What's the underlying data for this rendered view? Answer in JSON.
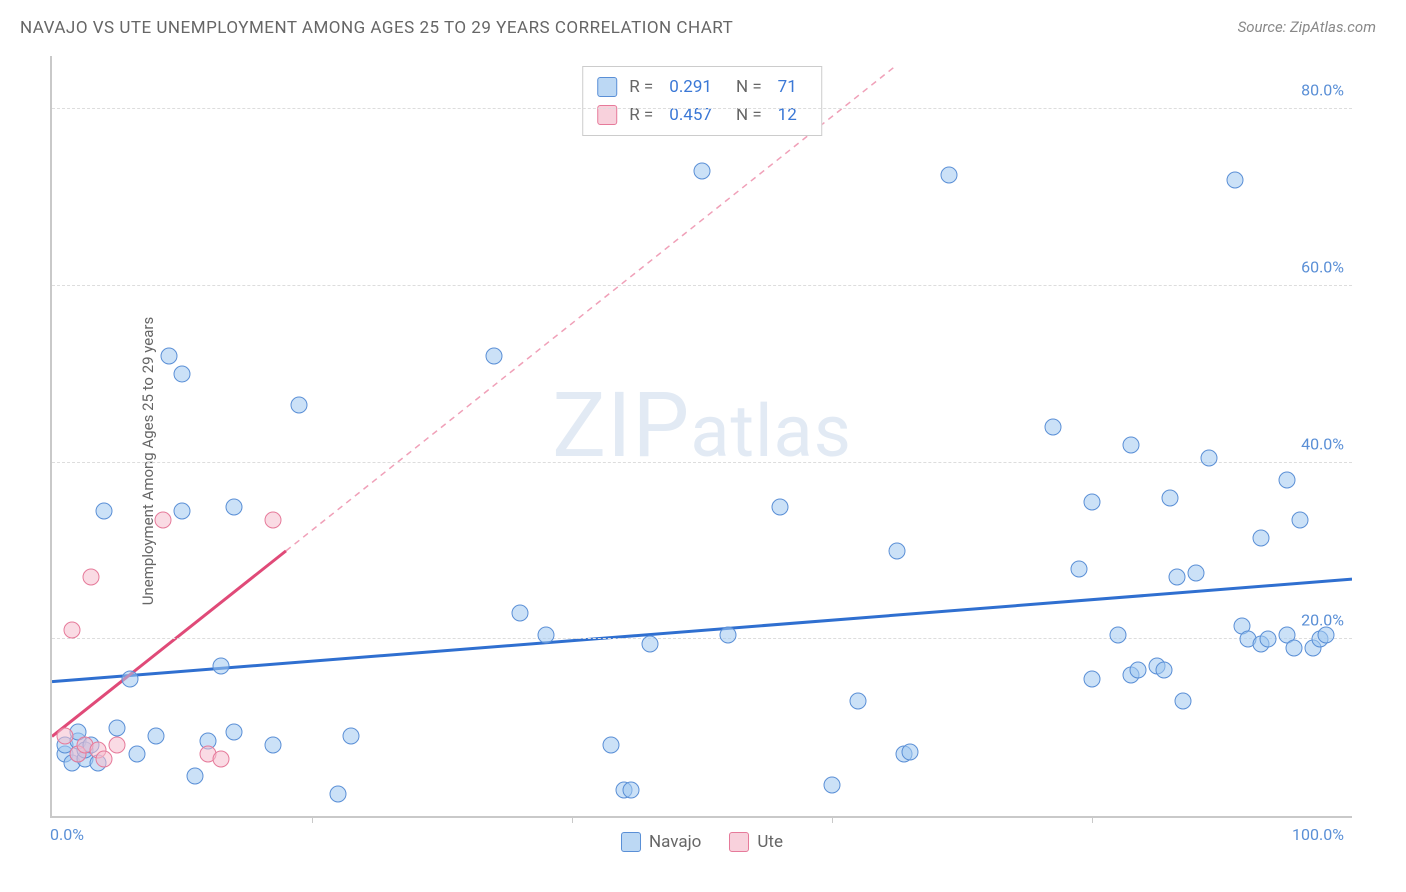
{
  "title": "NAVAJO VS UTE UNEMPLOYMENT AMONG AGES 25 TO 29 YEARS CORRELATION CHART",
  "source": "Source: ZipAtlas.com",
  "ylabel": "Unemployment Among Ages 25 to 29 years",
  "watermark_big": "ZIP",
  "watermark_small": "atlas",
  "chart": {
    "type": "scatter",
    "xlim": [
      0,
      100
    ],
    "ylim": [
      0,
      86
    ],
    "x_ticks_minor": [
      20,
      40,
      60,
      80
    ],
    "x_tick_labels": [
      {
        "v": 0,
        "label": "0.0%"
      },
      {
        "v": 100,
        "label": "100.0%"
      }
    ],
    "y_gridlines": [
      20,
      40,
      60,
      80
    ],
    "y_tick_labels": [
      {
        "v": 20,
        "label": "20.0%"
      },
      {
        "v": 40,
        "label": "40.0%"
      },
      {
        "v": 60,
        "label": "60.0%"
      },
      {
        "v": 80,
        "label": "80.0%"
      }
    ],
    "background_color": "#ffffff",
    "grid_color": "#dddddd",
    "axis_color": "#c9c9c9",
    "series": {
      "navajo": {
        "label": "Navajo",
        "R": "0.291",
        "N": "71",
        "fill": "rgba(160,200,240,0.55)",
        "stroke": "#5a8fd6",
        "marker_size": 17,
        "trend": {
          "x1": 0,
          "y1": 15.2,
          "x2": 100,
          "y2": 26.8,
          "color": "#2f6fd0",
          "width": 3,
          "dash": "none"
        },
        "points": [
          [
            1,
            7
          ],
          [
            1,
            8
          ],
          [
            1.5,
            6
          ],
          [
            2,
            7
          ],
          [
            2,
            8.5
          ],
          [
            2,
            9.5
          ],
          [
            2.5,
            6.5
          ],
          [
            2.5,
            7.5
          ],
          [
            3,
            8
          ],
          [
            3.5,
            6
          ],
          [
            4,
            34.5
          ],
          [
            5,
            10
          ],
          [
            6,
            15.5
          ],
          [
            6.5,
            7
          ],
          [
            8,
            9
          ],
          [
            9,
            52
          ],
          [
            10,
            50
          ],
          [
            10,
            34.5
          ],
          [
            11,
            4.5
          ],
          [
            12,
            8.5
          ],
          [
            13,
            17
          ],
          [
            14,
            35
          ],
          [
            14,
            9.5
          ],
          [
            17,
            8
          ],
          [
            19,
            46.5
          ],
          [
            22,
            2.5
          ],
          [
            23,
            9
          ],
          [
            34,
            52
          ],
          [
            36,
            23
          ],
          [
            38,
            20.5
          ],
          [
            43,
            8
          ],
          [
            44,
            3
          ],
          [
            44.5,
            3
          ],
          [
            46,
            19.5
          ],
          [
            50,
            73
          ],
          [
            52,
            20.5
          ],
          [
            56,
            35
          ],
          [
            60,
            3.5
          ],
          [
            62,
            13
          ],
          [
            65,
            30
          ],
          [
            65.5,
            7
          ],
          [
            66,
            7.3
          ],
          [
            69,
            72.5
          ],
          [
            77,
            44
          ],
          [
            79,
            28
          ],
          [
            80,
            15.5
          ],
          [
            80,
            35.5
          ],
          [
            82,
            20.5
          ],
          [
            83,
            42
          ],
          [
            83,
            16
          ],
          [
            83.5,
            16.5
          ],
          [
            85,
            17
          ],
          [
            85.5,
            16.5
          ],
          [
            86,
            36
          ],
          [
            86.5,
            27
          ],
          [
            87,
            13
          ],
          [
            88,
            27.5
          ],
          [
            89,
            40.5
          ],
          [
            91,
            72
          ],
          [
            91.5,
            21.5
          ],
          [
            92,
            20
          ],
          [
            93,
            31.5
          ],
          [
            93,
            19.5
          ],
          [
            93.5,
            20
          ],
          [
            95,
            38
          ],
          [
            95,
            20.5
          ],
          [
            95.5,
            19
          ],
          [
            96,
            33.5
          ],
          [
            97,
            19
          ],
          [
            97.5,
            20
          ],
          [
            98,
            20.5
          ]
        ]
      },
      "ute": {
        "label": "Ute",
        "R": "0.457",
        "N": "12",
        "fill": "rgba(245,190,205,0.55)",
        "stroke": "#e67a9a",
        "marker_size": 17,
        "trend_solid": {
          "x1": 0,
          "y1": 9,
          "x2": 18,
          "y2": 30,
          "color": "#e04a78",
          "width": 3
        },
        "trend_dash": {
          "x1": 18,
          "y1": 30,
          "x2": 65,
          "y2": 85,
          "color": "#f0a0b8",
          "width": 1.5,
          "dash": "6 5"
        },
        "points": [
          [
            1,
            9
          ],
          [
            1.5,
            21
          ],
          [
            2,
            7
          ],
          [
            2.5,
            8
          ],
          [
            3,
            27
          ],
          [
            3.5,
            7.5
          ],
          [
            4,
            6.5
          ],
          [
            5,
            8
          ],
          [
            8.5,
            33.5
          ],
          [
            12,
            7
          ],
          [
            13,
            6.5
          ],
          [
            17,
            33.5
          ]
        ]
      }
    }
  },
  "stats_legend": {
    "r_label": "R  =",
    "n_label": "N  ="
  },
  "bottom_legend": [
    "Navajo",
    "Ute"
  ]
}
